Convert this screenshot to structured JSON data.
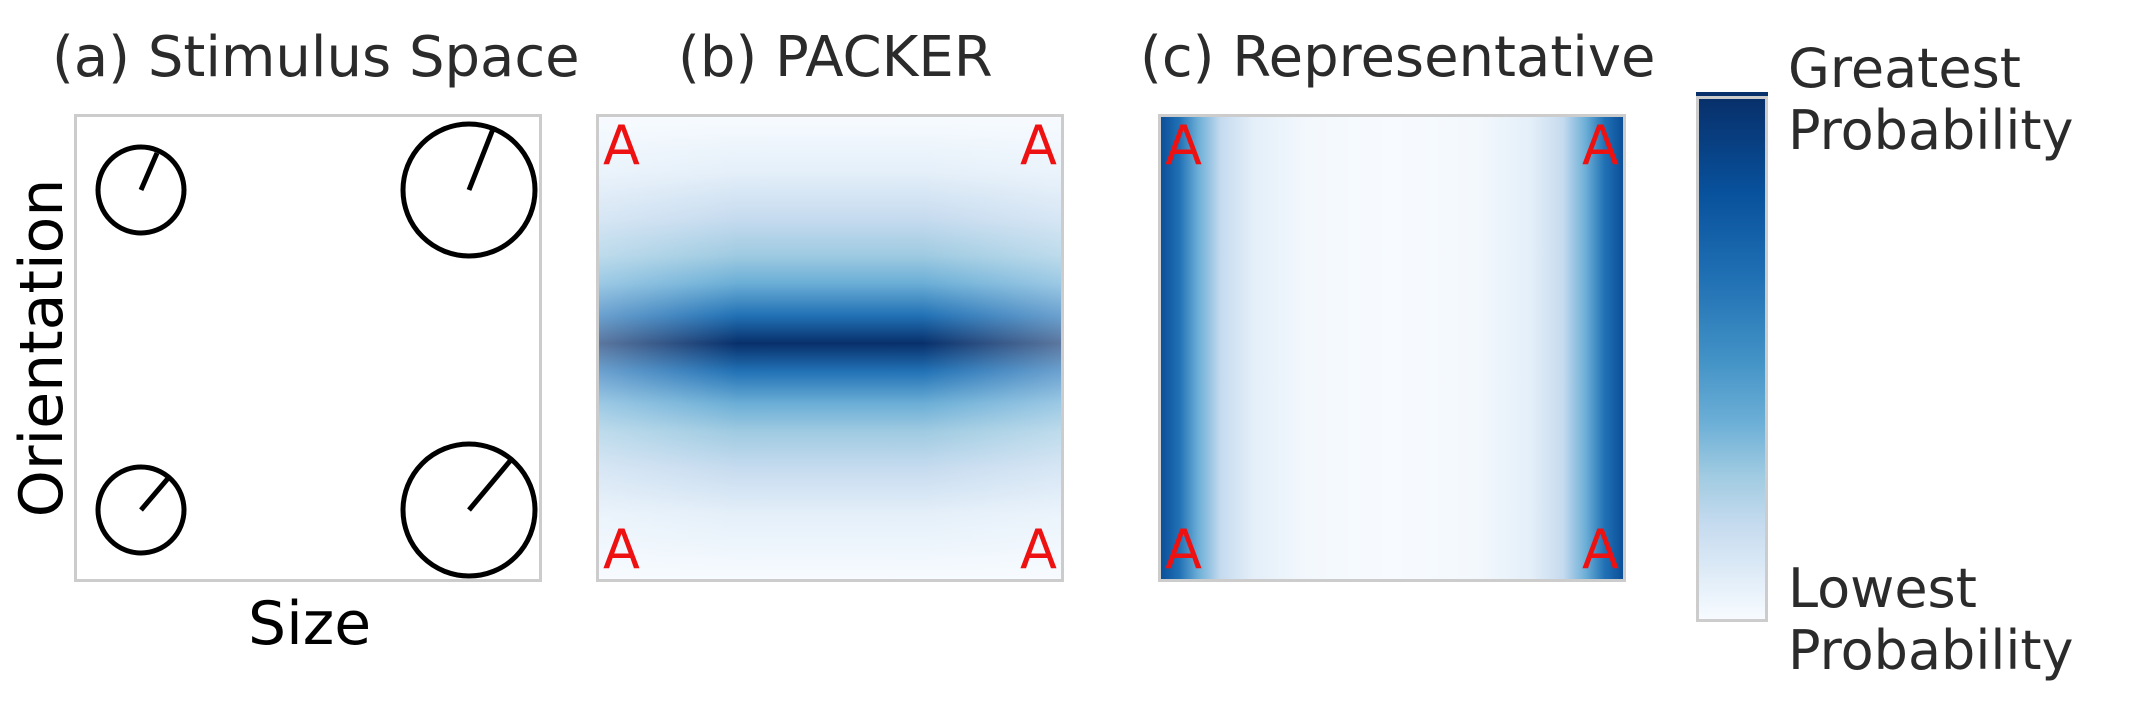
{
  "panels": {
    "stimulus": {
      "title": "(a) Stimulus Space",
      "xlabel": "Size",
      "ylabel": "Orientation",
      "stimuli": [
        {
          "size": "small",
          "orientation": "up-right"
        },
        {
          "size": "large",
          "orientation": "up-right"
        },
        {
          "size": "small",
          "orientation": "diagonal"
        },
        {
          "size": "large",
          "orientation": "diagonal"
        }
      ]
    },
    "packer": {
      "title": "(b) PACKER",
      "marker": "A"
    },
    "representative": {
      "title": "(c) Representative",
      "marker": "A"
    }
  },
  "colorbar": {
    "top_label_line1": "Greatest",
    "top_label_line2": "Probability",
    "bottom_label_line1": "Lowest",
    "bottom_label_line2": "Probability",
    "colormap": "Blues",
    "dark_color": "#08306b",
    "light_color": "#f7fbff"
  },
  "colors": {
    "marker": "#ee1111",
    "frame": "#cccccc"
  }
}
